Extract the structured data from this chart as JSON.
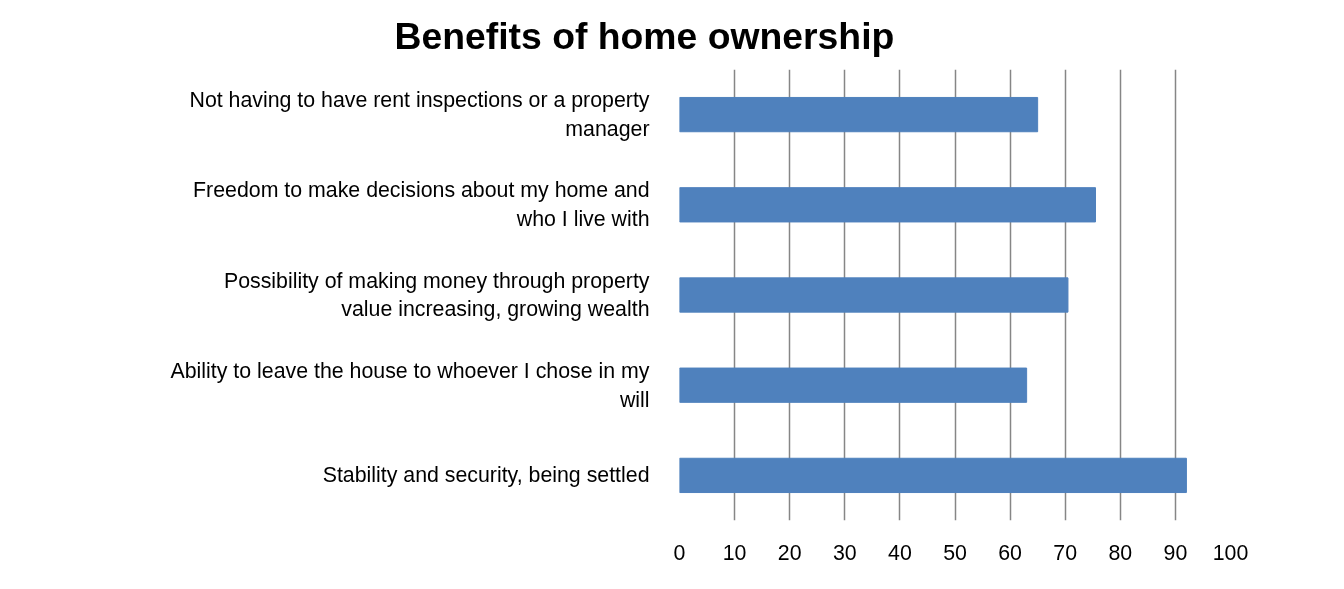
{
  "chart_data": {
    "type": "bar",
    "orientation": "horizontal",
    "title": "Benefits of home ownership",
    "categories": [
      "Not having to have rent inspections or a property\nmanager",
      "Freedom to make decisions about my home and\nwho I live with",
      "Possibility of making money through property\nvalue increasing, growing wealth",
      "Ability to leave the house to whoever I chose in my\nwill",
      "Stability and security, being settled"
    ],
    "values": [
      65,
      75.5,
      70.5,
      63,
      92
    ],
    "color": "#4f81bd",
    "xlim": [
      0,
      100
    ],
    "xticks": [
      0,
      10,
      20,
      30,
      40,
      50,
      60,
      70,
      80,
      90,
      100
    ],
    "grid": "x"
  }
}
